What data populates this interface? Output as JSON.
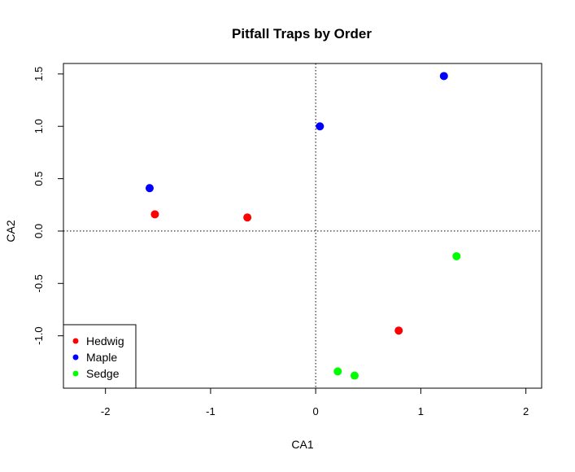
{
  "chart_data": {
    "type": "scatter",
    "title": "Pitfall Traps by Order",
    "xlabel": "CA1",
    "ylabel": "CA2",
    "xlim": [
      -2.4,
      2.15
    ],
    "ylim": [
      -1.5,
      1.6
    ],
    "x_ticks": [
      -2,
      -1,
      0,
      1,
      2
    ],
    "x_tick_labels": [
      "-2",
      "-1",
      "0",
      "1",
      "2"
    ],
    "y_ticks": [
      -1.0,
      -0.5,
      0.0,
      0.5,
      1.0,
      1.5
    ],
    "y_tick_labels": [
      "-1.0",
      "-0.5",
      "0.0",
      "0.5",
      "1.0",
      "1.5"
    ],
    "reference_lines": {
      "x": 0,
      "y": 0,
      "style": "dotted"
    },
    "grid": false,
    "legend": {
      "position": "bottom-left"
    },
    "series": [
      {
        "name": "Hedwig",
        "color": "#ff0000",
        "x": [
          -1.53,
          -0.65,
          0.79
        ],
        "y": [
          0.16,
          0.13,
          -0.95
        ]
      },
      {
        "name": "Maple",
        "color": "#0000ff",
        "x": [
          -1.58,
          0.04,
          1.22
        ],
        "y": [
          0.41,
          1.0,
          1.48
        ]
      },
      {
        "name": "Sedge",
        "color": "#00ff00",
        "x": [
          1.34,
          0.21,
          0.37
        ],
        "y": [
          -0.24,
          -1.34,
          -1.38
        ]
      }
    ]
  }
}
